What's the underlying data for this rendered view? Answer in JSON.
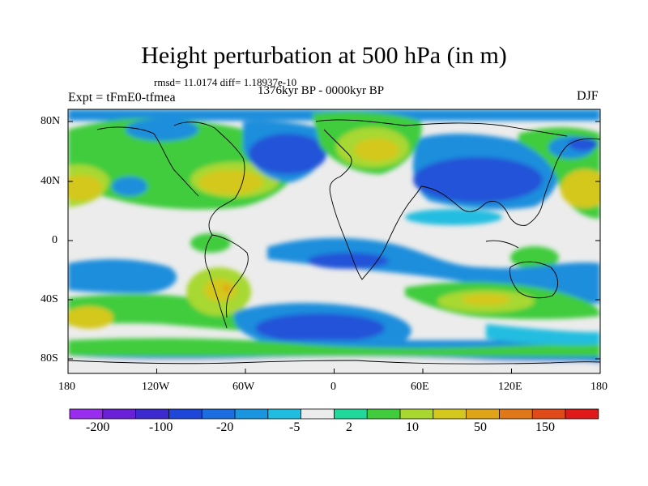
{
  "header": {
    "title": "Height perturbation at 500 hPa (in m)",
    "stats": "rmsd= 11.0174 diff= 1.18937e-10",
    "experiment": "Expt = tFmE0-tfmea",
    "period": "1376kyr BP - 0000kyr BP",
    "season": "DJF"
  },
  "axes": {
    "lat_labels": [
      "80N",
      "40N",
      "0",
      "40S",
      "80S"
    ],
    "lon_labels": [
      "180",
      "120W",
      "60W",
      "0",
      "60E",
      "120E",
      "180"
    ]
  },
  "colorbar": {
    "labels": [
      "-200",
      "-100",
      "-20",
      "-5",
      "2",
      "10",
      "50",
      "150"
    ],
    "colors": [
      "#9a2cf0",
      "#6a20d8",
      "#3c2ad0",
      "#1e46d8",
      "#1c6ee0",
      "#1a96e0",
      "#20bde0",
      "#ececec",
      "#20d89a",
      "#40cc3c",
      "#a8d830",
      "#d4c81c",
      "#e0a418",
      "#e07818",
      "#e04a18",
      "#e01a18"
    ]
  },
  "map_colors": {
    "neutral": "#ececec",
    "deep_blue": "#2252d8",
    "mid_blue": "#1a8edc",
    "light_blue": "#20bde0",
    "teal": "#20d89a",
    "green": "#40cc3c",
    "yellow_green": "#a8d830",
    "mustard": "#d4c81c",
    "orange": "#e0a418",
    "red_orange": "#e07818"
  }
}
